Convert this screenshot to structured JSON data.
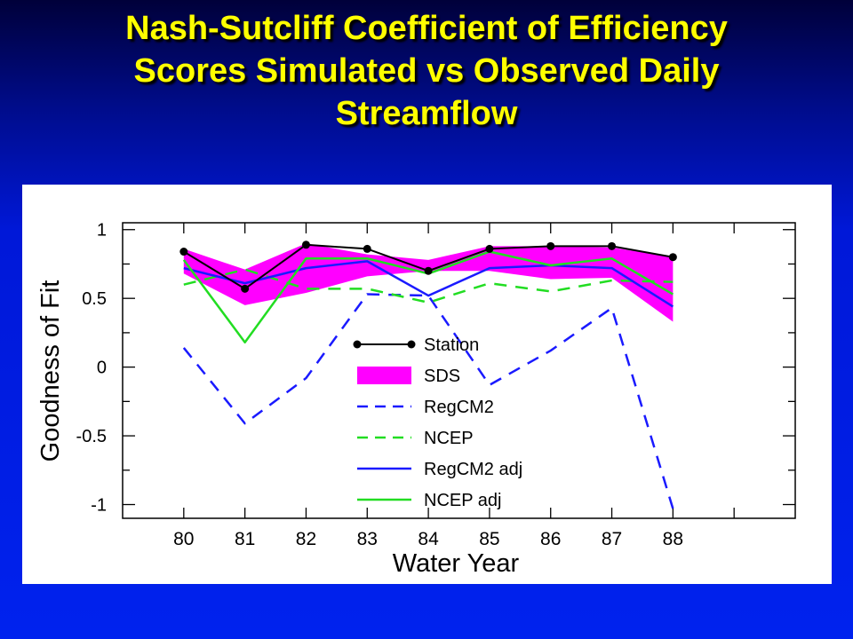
{
  "slide": {
    "title_lines": [
      "Nash-Sutcliff Coefficient of Efficiency",
      "Scores Simulated vs Observed Daily",
      "Streamflow"
    ]
  },
  "colors": {
    "title": "#ffff00",
    "station": "#000000",
    "sds": "#ff00ff",
    "regcm2": "#1a1aff",
    "ncep": "#22dd22"
  },
  "chart_data": {
    "type": "line",
    "title": "",
    "xlabel": "Water Year",
    "ylabel": "Goodness of Fit",
    "categories": [
      "80",
      "81",
      "82",
      "83",
      "84",
      "85",
      "86",
      "87",
      "88"
    ],
    "x": [
      80,
      81,
      82,
      83,
      84,
      85,
      86,
      87,
      88
    ],
    "xlim": [
      79,
      90
    ],
    "ylim": [
      -1.1,
      1.05
    ],
    "y_ticks": [
      1,
      0.5,
      0,
      -0.5,
      -1
    ],
    "y_tick_labels": [
      "1",
      "0.5",
      "0",
      "-0.5",
      "-1"
    ],
    "grid": false,
    "legend_position": "center",
    "series": [
      {
        "name": "Station",
        "style": "line-dots",
        "color": "#000000",
        "values": [
          0.84,
          0.57,
          0.89,
          0.86,
          0.7,
          0.86,
          0.88,
          0.88,
          0.8
        ]
      },
      {
        "name": "RegCM2",
        "style": "dashed",
        "color": "#1a1aff",
        "values": [
          0.14,
          -0.41,
          -0.08,
          0.53,
          0.52,
          -0.13,
          0.12,
          0.43,
          -1.03
        ]
      },
      {
        "name": "NCEP",
        "style": "dashed",
        "color": "#22dd22",
        "values": [
          0.6,
          0.71,
          0.57,
          0.57,
          0.47,
          0.61,
          0.55,
          0.63,
          0.62
        ]
      },
      {
        "name": "RegCM2 adj",
        "style": "solid",
        "color": "#1a1aff",
        "values": [
          0.72,
          0.61,
          0.72,
          0.77,
          0.52,
          0.72,
          0.74,
          0.72,
          0.44
        ]
      },
      {
        "name": "NCEP adj",
        "style": "solid",
        "color": "#22dd22",
        "values": [
          0.78,
          0.18,
          0.79,
          0.79,
          0.68,
          0.84,
          0.74,
          0.79,
          0.53
        ]
      }
    ],
    "band": {
      "name": "SDS",
      "color": "#ff00ff",
      "upper": [
        0.86,
        0.71,
        0.9,
        0.82,
        0.78,
        0.88,
        0.88,
        0.87,
        0.8
      ],
      "lower": [
        0.68,
        0.45,
        0.54,
        0.66,
        0.7,
        0.7,
        0.64,
        0.65,
        0.33
      ]
    },
    "legend": [
      "Station",
      "SDS",
      "RegCM2",
      "NCEP",
      "RegCM2 adj",
      "NCEP adj"
    ]
  }
}
